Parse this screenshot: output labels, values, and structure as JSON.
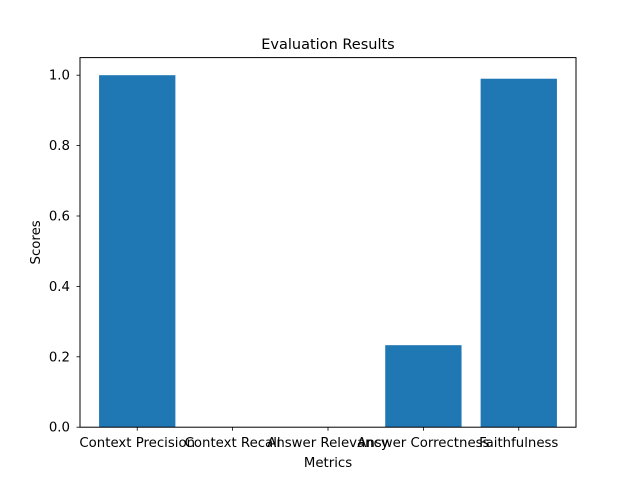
{
  "chart_data": {
    "type": "bar",
    "title": "Evaluation Results",
    "xlabel": "Metrics",
    "ylabel": "Scores",
    "categories": [
      "Context Precision",
      "Context Recall",
      "Answer Relevancy",
      "Answer Correctness",
      "Faithfulness"
    ],
    "values": [
      1.0,
      0.0,
      0.0,
      0.233,
      0.99
    ],
    "ylim": [
      0,
      1.05
    ],
    "yticks": [
      "0.0",
      "0.2",
      "0.4",
      "0.6",
      "0.8",
      "1.0"
    ],
    "grid": false,
    "bar_color": "#1f77b4"
  }
}
